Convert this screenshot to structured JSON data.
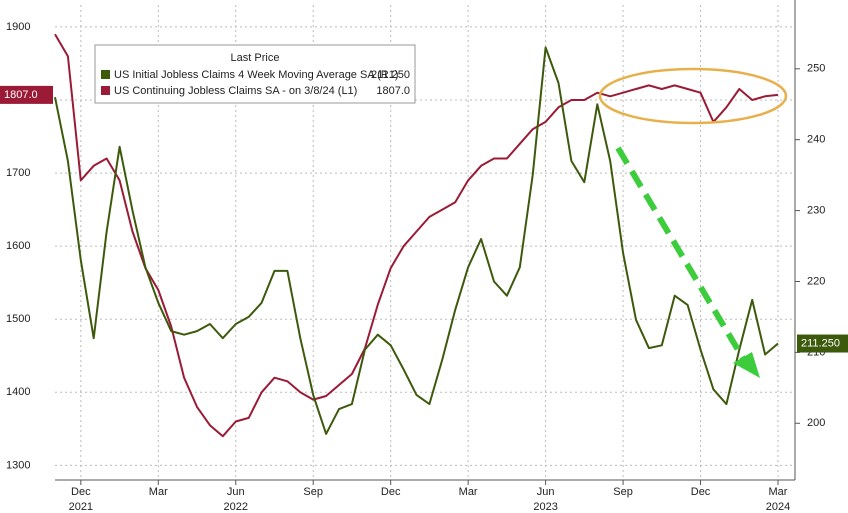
{
  "chart_data": {
    "type": "line",
    "legend_title": "Last Price",
    "categories": [
      null,
      null,
      "Dec",
      null,
      null,
      null,
      null,
      null,
      "Mar",
      null,
      null,
      null,
      null,
      null,
      "Jun",
      null,
      null,
      null,
      null,
      null,
      "Sep",
      null,
      null,
      null,
      null,
      null,
      "Dec",
      null,
      null,
      null,
      null,
      null,
      "Mar",
      null,
      null,
      null,
      null,
      null,
      "Jun",
      null,
      null,
      null,
      null,
      null,
      "Sep",
      null,
      null,
      null,
      null,
      null,
      "Dec",
      null,
      null,
      null,
      null,
      null,
      "Mar"
    ],
    "year_labels": [
      null,
      null,
      "2021",
      null,
      null,
      null,
      null,
      null,
      null,
      null,
      null,
      null,
      null,
      null,
      "2022",
      null,
      null,
      null,
      null,
      null,
      null,
      null,
      null,
      null,
      null,
      null,
      null,
      null,
      null,
      null,
      null,
      null,
      null,
      null,
      null,
      null,
      null,
      null,
      "2023",
      null,
      null,
      null,
      null,
      null,
      null,
      null,
      null,
      null,
      null,
      null,
      null,
      null,
      null,
      null,
      null,
      null,
      "2024"
    ],
    "ylim": [
      1280,
      1930
    ],
    "yticks": [
      1300,
      1400,
      1500,
      1600,
      1700,
      1800,
      1900
    ],
    "y2lim": [
      192,
      259
    ],
    "y2ticks": [
      200,
      210,
      220,
      230,
      240,
      250
    ],
    "grid": true,
    "series": [
      {
        "name": "US Initial Jobless Claims 4 Week Moving Average SA  (R1)",
        "color": "#3d5a0c",
        "axis": "y2",
        "last_label": "211.250",
        "values": [
          246,
          237,
          223,
          212,
          227,
          239,
          230,
          222,
          217,
          213,
          212.5,
          213,
          214,
          212,
          214,
          215,
          217,
          221.5,
          221.5,
          212,
          204,
          198.5,
          202,
          202.7,
          210.4,
          212.5,
          211,
          207.6,
          204,
          202.7,
          209,
          216,
          222,
          226,
          220,
          218,
          222,
          235,
          253,
          248,
          237,
          234,
          245,
          237,
          224,
          214.6,
          210.6,
          211,
          218,
          216.7,
          210.4,
          204.8,
          202.7,
          210.4,
          217.4,
          209.7,
          211.25
        ]
      },
      {
        "name": "US Continuing Jobless Claims SA -  on 3/8/24  (L1)",
        "color": "#9b1b36",
        "axis": "y",
        "last_label": "1807.0",
        "values": [
          1890,
          1860,
          1690,
          1710,
          1720,
          1690,
          1620,
          1570,
          1540,
          1490,
          1420,
          1380,
          1355,
          1340,
          1360,
          1365,
          1400,
          1420,
          1415,
          1400,
          1390,
          1395,
          1410,
          1425,
          1460,
          1520,
          1570,
          1600,
          1620,
          1640,
          1650,
          1660,
          1690,
          1710,
          1720,
          1720,
          1740,
          1760,
          1770,
          1790,
          1800,
          1800,
          1810,
          1805,
          1810,
          1815,
          1820,
          1815,
          1820,
          1815,
          1810,
          1770,
          1790,
          1815,
          1800,
          1805,
          1807
        ]
      }
    ]
  }
}
